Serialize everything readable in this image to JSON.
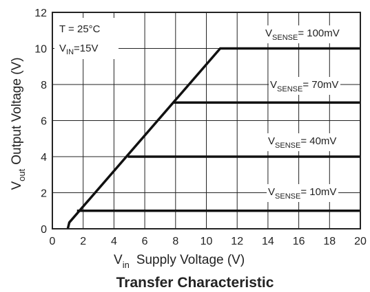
{
  "chart_data": {
    "type": "line",
    "caption": "Transfer Characteristic",
    "xlabel": {
      "main": "V",
      "sub": "in",
      "rest": "Supply Voltage (V)"
    },
    "ylabel": {
      "main": "V",
      "sub": "out",
      "rest": "Output Voltage (V)"
    },
    "xlim": [
      0,
      20
    ],
    "ylim": [
      0,
      12
    ],
    "xticks": [
      0,
      2,
      4,
      6,
      8,
      10,
      12,
      14,
      16,
      18,
      20
    ],
    "yticks": [
      0,
      2,
      4,
      6,
      8,
      10,
      12
    ],
    "grid": true,
    "conditions": {
      "temp": "T = 25°C",
      "vin": {
        "main": "V",
        "sub": "IN",
        "rest": "=15V"
      }
    },
    "series": [
      {
        "label": {
          "main": "V",
          "sub": "SENSE",
          "rest": "= 100mV"
        },
        "x": [
          1.0,
          1.1,
          10.9,
          20
        ],
        "y": [
          0.0,
          0.35,
          10.0,
          10.0
        ]
      },
      {
        "label": {
          "main": "V",
          "sub": "SENSE",
          "rest": "= 70mV"
        },
        "x": [
          7.9,
          20
        ],
        "y": [
          7.0,
          7.0
        ]
      },
      {
        "label": {
          "main": "V",
          "sub": "SENSE",
          "rest": "= 40mV"
        },
        "x": [
          4.9,
          20
        ],
        "y": [
          4.0,
          4.0
        ]
      },
      {
        "label": {
          "main": "V",
          "sub": "SENSE",
          "rest": "= 10mV"
        },
        "x": [
          1.6,
          20
        ],
        "y": [
          1.0,
          1.0
        ]
      }
    ]
  }
}
